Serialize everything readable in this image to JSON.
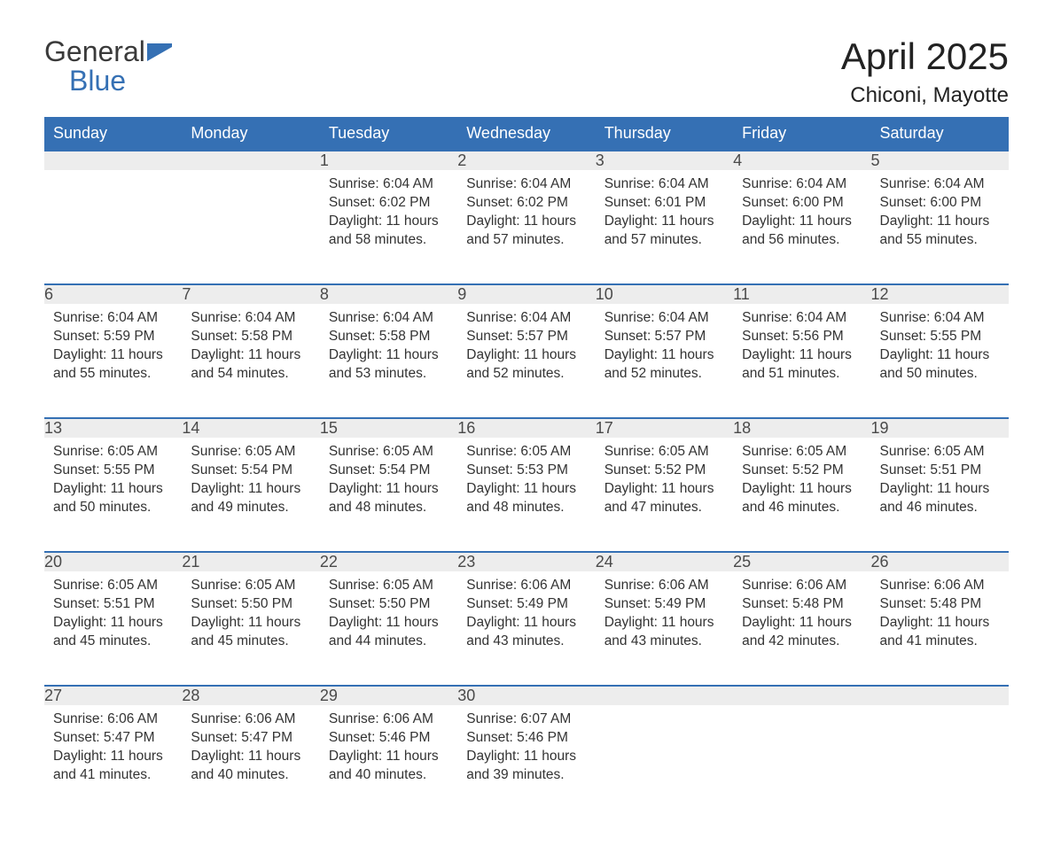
{
  "brand": {
    "part1": "General",
    "part2": "Blue"
  },
  "title": "April 2025",
  "location": "Chiconi, Mayotte",
  "colors": {
    "header_bg": "#3570b4",
    "header_text": "#ffffff",
    "daynum_bg": "#ededed",
    "week_border": "#3570b4",
    "body_text": "#333333",
    "page_bg": "#ffffff",
    "brand_blue": "#3570b4"
  },
  "typography": {
    "title_fontsize": 42,
    "location_fontsize": 24,
    "header_fontsize": 18,
    "body_fontsize": 15.5
  },
  "day_headers": [
    "Sunday",
    "Monday",
    "Tuesday",
    "Wednesday",
    "Thursday",
    "Friday",
    "Saturday"
  ],
  "weeks": [
    [
      null,
      null,
      {
        "n": "1",
        "sunrise": "6:04 AM",
        "sunset": "6:02 PM",
        "daylight": "11 hours and 58 minutes."
      },
      {
        "n": "2",
        "sunrise": "6:04 AM",
        "sunset": "6:02 PM",
        "daylight": "11 hours and 57 minutes."
      },
      {
        "n": "3",
        "sunrise": "6:04 AM",
        "sunset": "6:01 PM",
        "daylight": "11 hours and 57 minutes."
      },
      {
        "n": "4",
        "sunrise": "6:04 AM",
        "sunset": "6:00 PM",
        "daylight": "11 hours and 56 minutes."
      },
      {
        "n": "5",
        "sunrise": "6:04 AM",
        "sunset": "6:00 PM",
        "daylight": "11 hours and 55 minutes."
      }
    ],
    [
      {
        "n": "6",
        "sunrise": "6:04 AM",
        "sunset": "5:59 PM",
        "daylight": "11 hours and 55 minutes."
      },
      {
        "n": "7",
        "sunrise": "6:04 AM",
        "sunset": "5:58 PM",
        "daylight": "11 hours and 54 minutes."
      },
      {
        "n": "8",
        "sunrise": "6:04 AM",
        "sunset": "5:58 PM",
        "daylight": "11 hours and 53 minutes."
      },
      {
        "n": "9",
        "sunrise": "6:04 AM",
        "sunset": "5:57 PM",
        "daylight": "11 hours and 52 minutes."
      },
      {
        "n": "10",
        "sunrise": "6:04 AM",
        "sunset": "5:57 PM",
        "daylight": "11 hours and 52 minutes."
      },
      {
        "n": "11",
        "sunrise": "6:04 AM",
        "sunset": "5:56 PM",
        "daylight": "11 hours and 51 minutes."
      },
      {
        "n": "12",
        "sunrise": "6:04 AM",
        "sunset": "5:55 PM",
        "daylight": "11 hours and 50 minutes."
      }
    ],
    [
      {
        "n": "13",
        "sunrise": "6:05 AM",
        "sunset": "5:55 PM",
        "daylight": "11 hours and 50 minutes."
      },
      {
        "n": "14",
        "sunrise": "6:05 AM",
        "sunset": "5:54 PM",
        "daylight": "11 hours and 49 minutes."
      },
      {
        "n": "15",
        "sunrise": "6:05 AM",
        "sunset": "5:54 PM",
        "daylight": "11 hours and 48 minutes."
      },
      {
        "n": "16",
        "sunrise": "6:05 AM",
        "sunset": "5:53 PM",
        "daylight": "11 hours and 48 minutes."
      },
      {
        "n": "17",
        "sunrise": "6:05 AM",
        "sunset": "5:52 PM",
        "daylight": "11 hours and 47 minutes."
      },
      {
        "n": "18",
        "sunrise": "6:05 AM",
        "sunset": "5:52 PM",
        "daylight": "11 hours and 46 minutes."
      },
      {
        "n": "19",
        "sunrise": "6:05 AM",
        "sunset": "5:51 PM",
        "daylight": "11 hours and 46 minutes."
      }
    ],
    [
      {
        "n": "20",
        "sunrise": "6:05 AM",
        "sunset": "5:51 PM",
        "daylight": "11 hours and 45 minutes."
      },
      {
        "n": "21",
        "sunrise": "6:05 AM",
        "sunset": "5:50 PM",
        "daylight": "11 hours and 45 minutes."
      },
      {
        "n": "22",
        "sunrise": "6:05 AM",
        "sunset": "5:50 PM",
        "daylight": "11 hours and 44 minutes."
      },
      {
        "n": "23",
        "sunrise": "6:06 AM",
        "sunset": "5:49 PM",
        "daylight": "11 hours and 43 minutes."
      },
      {
        "n": "24",
        "sunrise": "6:06 AM",
        "sunset": "5:49 PM",
        "daylight": "11 hours and 43 minutes."
      },
      {
        "n": "25",
        "sunrise": "6:06 AM",
        "sunset": "5:48 PM",
        "daylight": "11 hours and 42 minutes."
      },
      {
        "n": "26",
        "sunrise": "6:06 AM",
        "sunset": "5:48 PM",
        "daylight": "11 hours and 41 minutes."
      }
    ],
    [
      {
        "n": "27",
        "sunrise": "6:06 AM",
        "sunset": "5:47 PM",
        "daylight": "11 hours and 41 minutes."
      },
      {
        "n": "28",
        "sunrise": "6:06 AM",
        "sunset": "5:47 PM",
        "daylight": "11 hours and 40 minutes."
      },
      {
        "n": "29",
        "sunrise": "6:06 AM",
        "sunset": "5:46 PM",
        "daylight": "11 hours and 40 minutes."
      },
      {
        "n": "30",
        "sunrise": "6:07 AM",
        "sunset": "5:46 PM",
        "daylight": "11 hours and 39 minutes."
      },
      null,
      null,
      null
    ]
  ],
  "labels": {
    "sunrise": "Sunrise: ",
    "sunset": "Sunset: ",
    "daylight": "Daylight: "
  }
}
